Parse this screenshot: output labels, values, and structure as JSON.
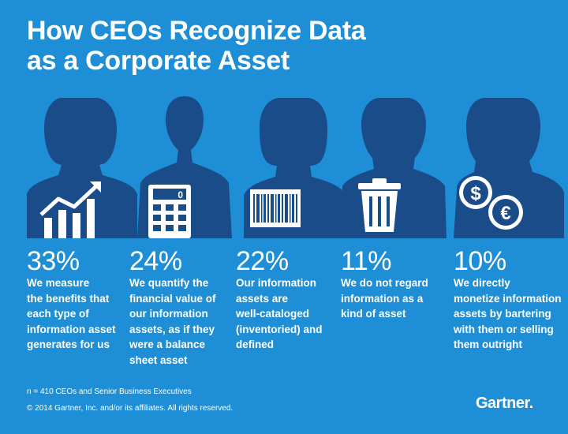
{
  "title": {
    "line1": "How CEOs Recognize Data",
    "line2": "as a Corporate Asset"
  },
  "colors": {
    "background": "#1e8fd6",
    "silhouette": "#1a4c8a",
    "text": "#ffffff"
  },
  "stats": [
    {
      "percent": "33%",
      "description": "We measure\nthe benefits that\neach type of\ninformation asset\ngenerates for us",
      "icon": "growth-chart-icon"
    },
    {
      "percent": "24%",
      "description": "We quantify the\nfinancial value of\nour information\nassets, as if they\nwere a balance\nsheet asset",
      "icon": "calculator-icon"
    },
    {
      "percent": "22%",
      "description": "Our information\nassets are\nwell-cataloged\n(inventoried) and\ndefined",
      "icon": "barcode-icon"
    },
    {
      "percent": "11%",
      "description": "We do not regard\ninformation as a\nkind of asset",
      "icon": "trash-can-icon"
    },
    {
      "percent": "10%",
      "description": "We directly\nmonetize information\nassets by bartering\nwith them or selling\nthem outright",
      "icon": "dollar-euro-coins-icon"
    }
  ],
  "calculator_display": "0",
  "footer": {
    "sample": "n = 410 CEOs and Senior Business Executives",
    "copyright": "© 2014 Gartner, Inc. and/or its affiliates. All rights reserved.",
    "logo": "Gartner."
  }
}
